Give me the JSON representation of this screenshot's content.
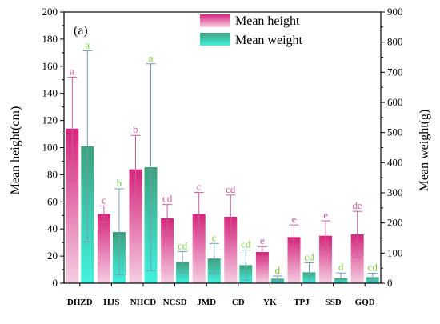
{
  "chart_data": {
    "type": "bar",
    "panel_label": "(a)",
    "categories": [
      "DHZD",
      "HJS",
      "NHCD",
      "NCSD",
      "JMD",
      "CD",
      "YK",
      "TPJ",
      "SSD",
      "GQD"
    ],
    "series": [
      {
        "name": "Mean height",
        "axis": "left",
        "color": "#d6247c",
        "values": [
          114,
          51,
          84,
          48,
          51,
          49,
          23,
          34,
          35,
          36
        ],
        "errors": [
          38,
          6,
          25,
          10,
          16,
          16,
          4,
          9,
          11,
          17
        ],
        "letters": [
          "a",
          "c",
          "b",
          "cd",
          "c",
          "cd",
          "e",
          "e",
          "e",
          "de"
        ],
        "letter_color": "#c8609a"
      },
      {
        "name": "Mean weight",
        "axis": "right",
        "color": "#1fd7bd",
        "values": [
          454,
          170,
          385,
          70,
          82,
          60,
          15,
          36,
          16,
          20
        ],
        "errors": [
          317,
          143,
          343,
          35,
          50,
          50,
          9,
          32,
          18,
          13
        ],
        "letters": [
          "a",
          "b",
          "a",
          "cd",
          "c",
          "cd",
          "d",
          "cd",
          "d",
          "cd"
        ],
        "letter_color": "#7ac943"
      }
    ],
    "ylabel_left": "Mean height(cm)",
    "ylabel_right": "Mean weight(g)",
    "ylim_left": [
      0,
      200
    ],
    "ylim_right": [
      0,
      900
    ],
    "yticks_left": [
      "0",
      "20",
      "40",
      "60",
      "80",
      "100",
      "120",
      "140",
      "160",
      "180",
      "200"
    ],
    "yticks_right": [
      "0",
      "100",
      "200",
      "300",
      "400",
      "500",
      "600",
      "700",
      "800",
      "900"
    ],
    "legend_position": "top-center",
    "grid": false
  }
}
